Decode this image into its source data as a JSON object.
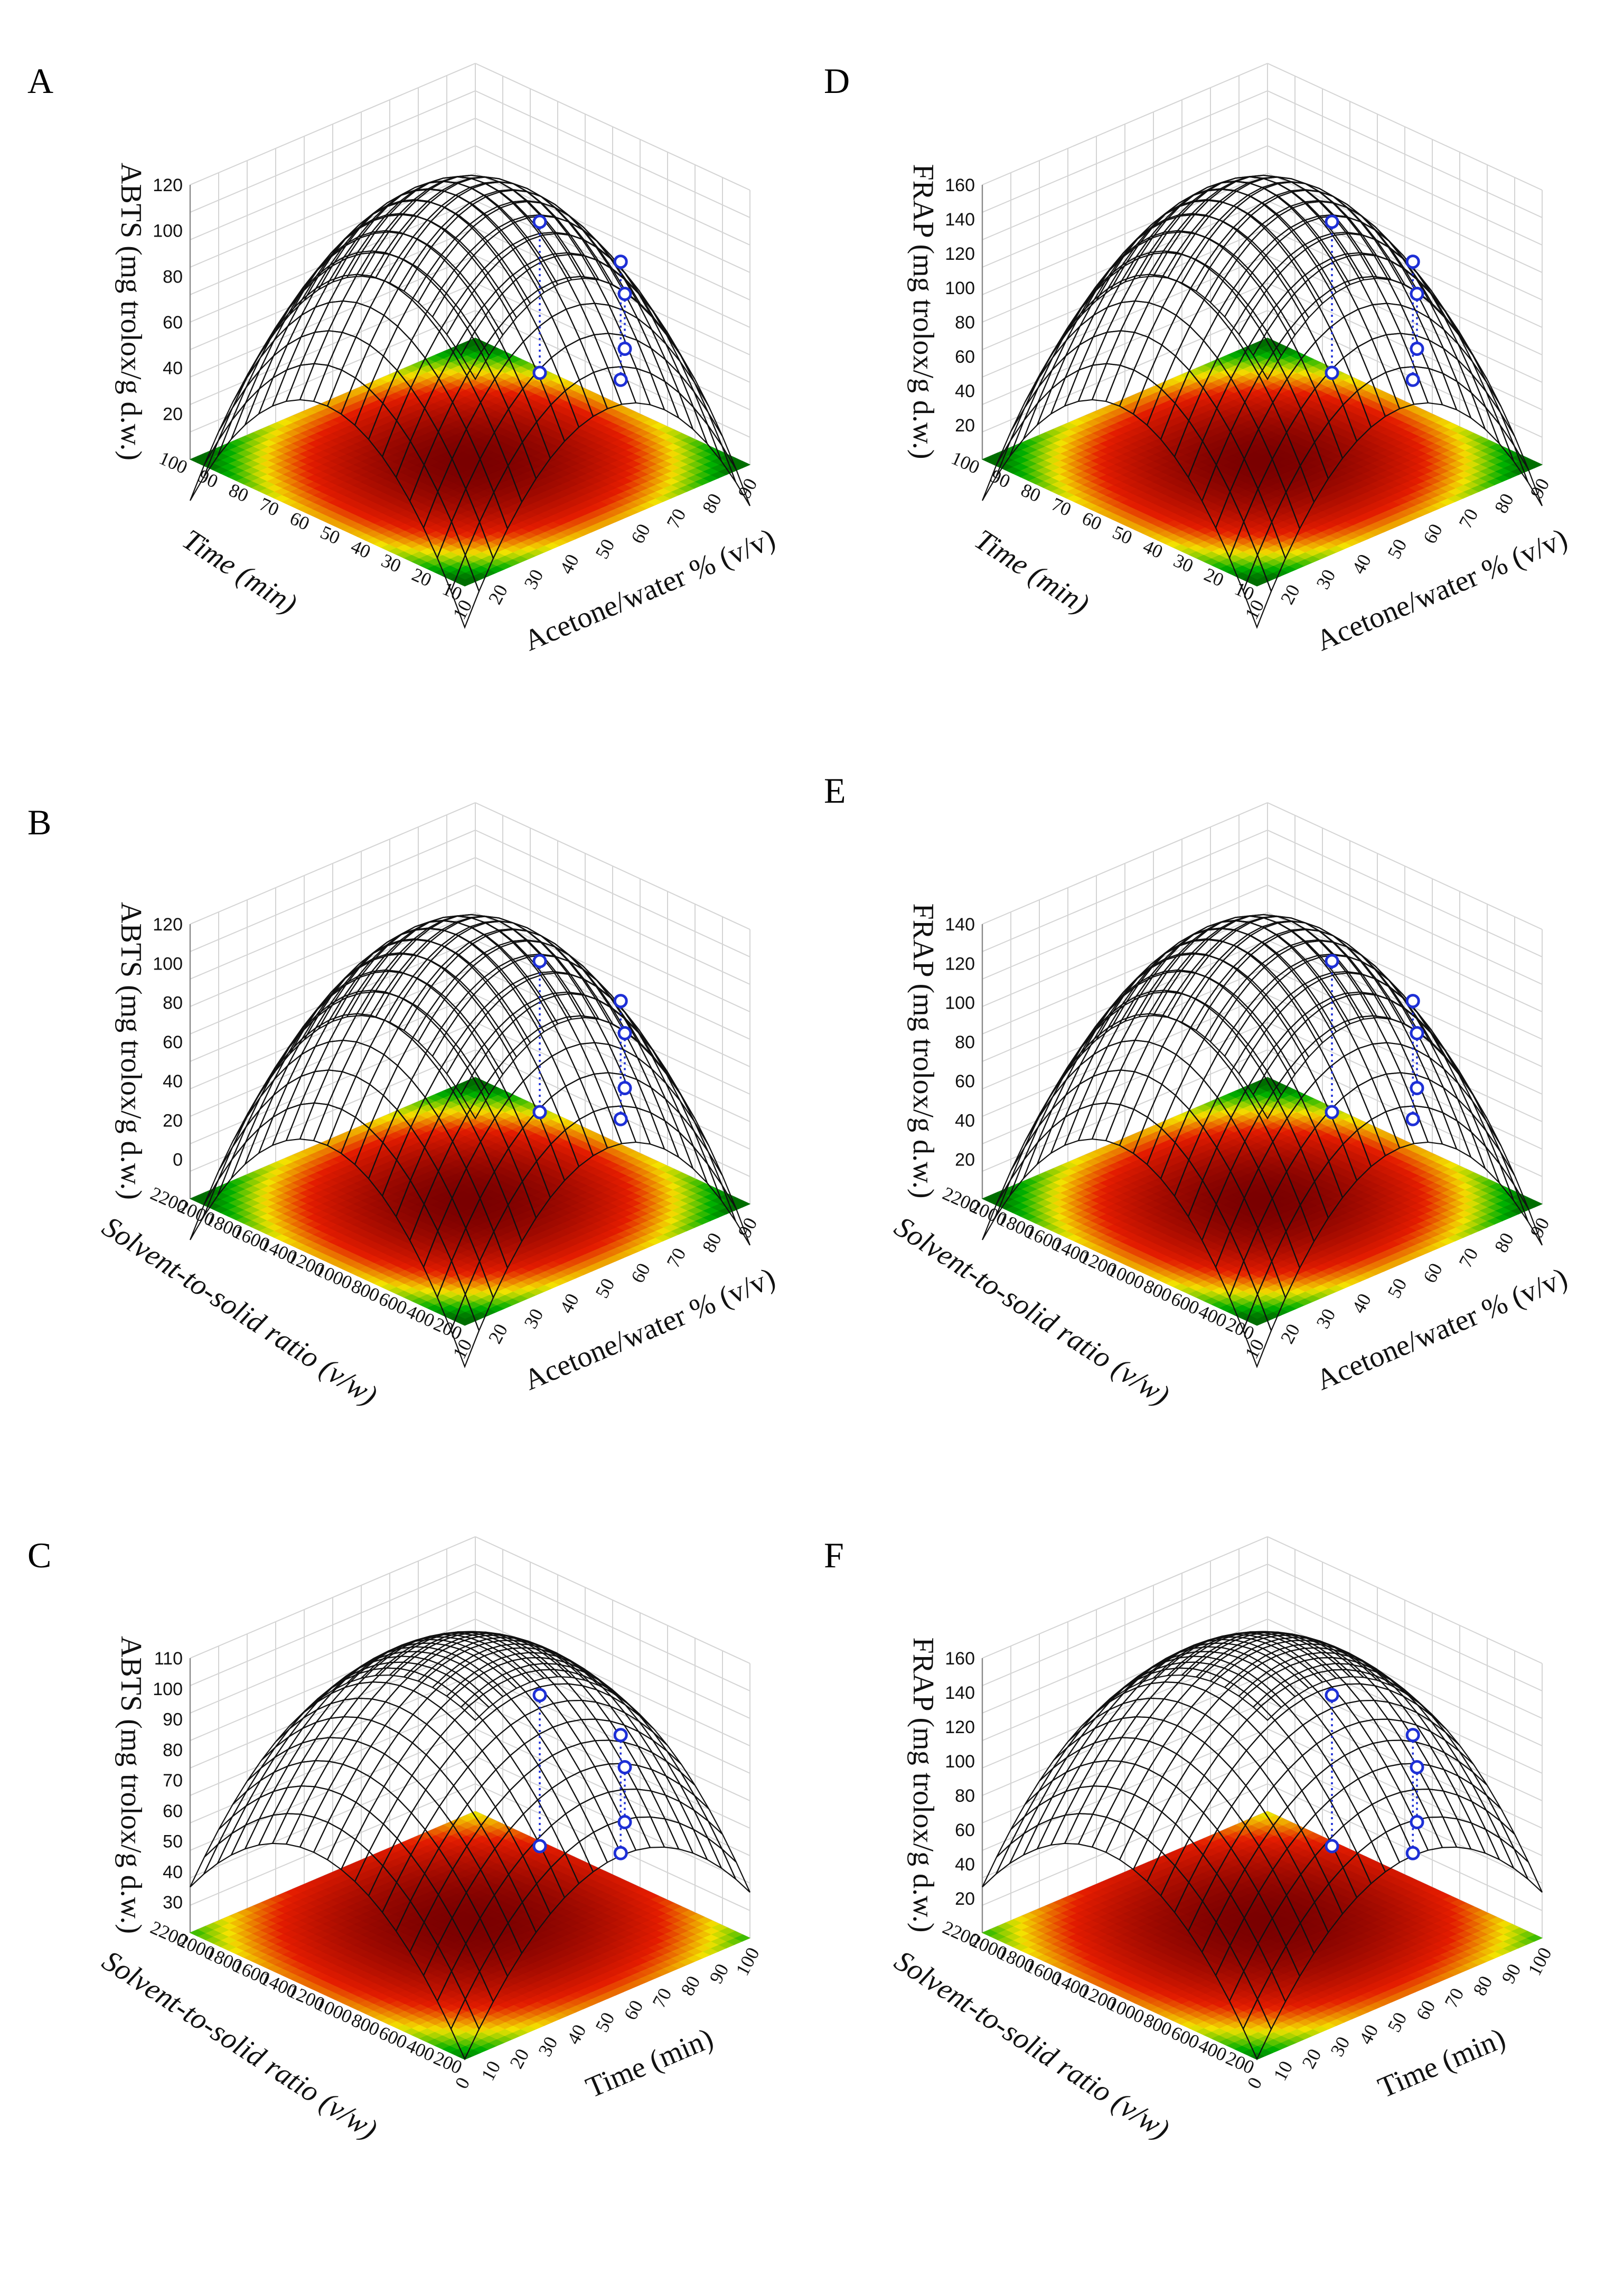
{
  "colors": {
    "high": "#7a0000",
    "mid": "#e01b00",
    "low_mid": "#f2e200",
    "low": "#00b000",
    "points": "#1d2fd6"
  },
  "chart_data": [
    {
      "panel": "A",
      "type": "surface3d",
      "function": "peak",
      "zlabel": "ABTS (mg trolox/g d.w.)",
      "xlabel": "Acetone/water % (v/v)",
      "ylabel": "Time (min)",
      "xticks": [
        "10",
        "20",
        "30",
        "40",
        "50",
        "60",
        "70",
        "80",
        "90"
      ],
      "yticks": [
        "10",
        "20",
        "30",
        "40",
        "50",
        "60",
        "70",
        "80",
        "90",
        "100"
      ],
      "zticks": [
        "20",
        "40",
        "60",
        "80",
        "100",
        "120"
      ],
      "xlim": [
        10,
        90
      ],
      "ylim": [
        10,
        100
      ],
      "zlim": [
        0,
        120
      ]
    },
    {
      "panel": "B",
      "type": "surface3d",
      "function": "peak",
      "zlabel": "ABTS (mg trolox/g d.w.)",
      "xlabel": "Acetone/water % (v/v)",
      "ylabel": "Solvent-to-solid ratio (v/w)",
      "xticks": [
        "10",
        "20",
        "30",
        "40",
        "50",
        "60",
        "70",
        "80",
        "90"
      ],
      "yticks": [
        "200",
        "400",
        "600",
        "800",
        "1000",
        "1200",
        "1400",
        "1600",
        "1800",
        "2000",
        "2200"
      ],
      "zticks": [
        "0",
        "20",
        "40",
        "60",
        "80",
        "100",
        "120"
      ],
      "xlim": [
        10,
        90
      ],
      "ylim": [
        200,
        2200
      ],
      "zlim": [
        -10,
        120
      ]
    },
    {
      "panel": "C",
      "type": "surface3d",
      "function": "dome",
      "zlabel": "ABTS (mg trolox/g d.w.)",
      "xlabel": "Time (min)",
      "ylabel": "Solvent-to-solid ratio (v/w)",
      "xticks": [
        "0",
        "10",
        "20",
        "30",
        "40",
        "50",
        "60",
        "70",
        "80",
        "90",
        "100"
      ],
      "yticks": [
        "200",
        "400",
        "600",
        "800",
        "1000",
        "1200",
        "1400",
        "1600",
        "1800",
        "2000",
        "2200"
      ],
      "zticks": [
        "30",
        "40",
        "50",
        "60",
        "70",
        "80",
        "90",
        "100",
        "110"
      ],
      "xlim": [
        0,
        100
      ],
      "ylim": [
        200,
        2200
      ],
      "zlim": [
        20,
        110
      ]
    },
    {
      "panel": "D",
      "type": "surface3d",
      "function": "peak",
      "zlabel": "FRAP (mg trolox/g d.w.)",
      "xlabel": "Acetone/water % (v/v)",
      "ylabel": "Time (min)",
      "xticks": [
        "10",
        "20",
        "30",
        "40",
        "50",
        "60",
        "70",
        "80",
        "90"
      ],
      "yticks": [
        "10",
        "20",
        "30",
        "40",
        "50",
        "60",
        "70",
        "80",
        "90",
        "100"
      ],
      "zticks": [
        "20",
        "40",
        "60",
        "80",
        "100",
        "120",
        "140",
        "160"
      ],
      "xlim": [
        10,
        90
      ],
      "ylim": [
        10,
        100
      ],
      "zlim": [
        0,
        160
      ]
    },
    {
      "panel": "E",
      "type": "surface3d",
      "function": "peak",
      "zlabel": "FRAP (mg trolox/g d.w.)",
      "xlabel": "Acetone/water % (v/v)",
      "ylabel": "Solvent-to-solid ratio (v/w)",
      "xticks": [
        "10",
        "20",
        "30",
        "40",
        "50",
        "60",
        "70",
        "80",
        "90"
      ],
      "yticks": [
        "200",
        "400",
        "600",
        "800",
        "1000",
        "1200",
        "1400",
        "1600",
        "1800",
        "2000",
        "2200"
      ],
      "zticks": [
        "20",
        "40",
        "60",
        "80",
        "100",
        "120",
        "140"
      ],
      "xlim": [
        10,
        90
      ],
      "ylim": [
        200,
        2200
      ],
      "zlim": [
        0,
        140
      ]
    },
    {
      "panel": "F",
      "type": "surface3d",
      "function": "dome",
      "zlabel": "FRAP (mg trolox/g d.w.)",
      "xlabel": "Time (min)",
      "ylabel": "Solvent-to-solid ratio (v/w)",
      "xticks": [
        "0",
        "10",
        "20",
        "30",
        "40",
        "50",
        "60",
        "70",
        "80",
        "90",
        "100"
      ],
      "yticks": [
        "200",
        "400",
        "600",
        "800",
        "1000",
        "1200",
        "1400",
        "1600",
        "1800",
        "2000",
        "2200"
      ],
      "zticks": [
        "20",
        "40",
        "60",
        "80",
        "100",
        "120",
        "140",
        "160"
      ],
      "xlim": [
        0,
        100
      ],
      "ylim": [
        200,
        2200
      ],
      "zlim": [
        0,
        160
      ]
    }
  ]
}
